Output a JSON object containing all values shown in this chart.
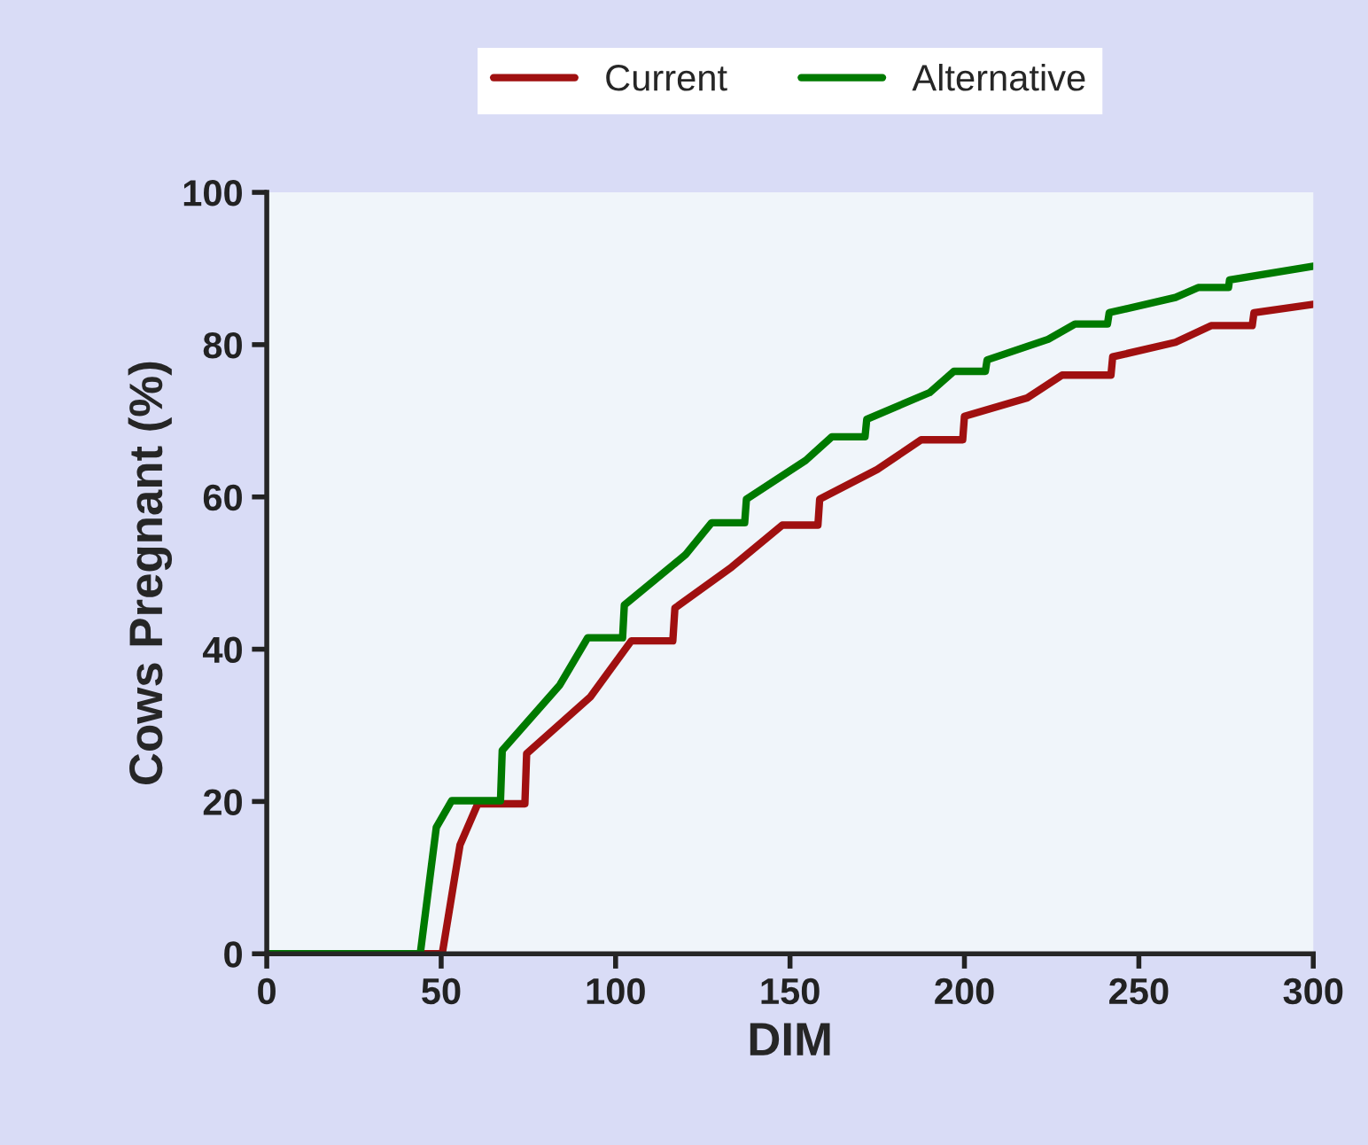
{
  "chart_data": {
    "type": "line",
    "xlabel": "DIM",
    "ylabel": "Cows Pregnant (%)",
    "xlim": [
      0,
      300
    ],
    "ylim": [
      0,
      100
    ],
    "xticks": [
      0,
      50,
      100,
      150,
      200,
      250,
      300
    ],
    "yticks": [
      0,
      20,
      40,
      60,
      80,
      100
    ],
    "grid": false,
    "legend": "top",
    "marker": "none",
    "line_style": "solid",
    "series": [
      {
        "name": "Current",
        "color": "#a01010",
        "x": [
          0,
          50.3,
          55.4,
          60.5,
          74,
          74.5,
          92.7,
          104.5,
          116.4,
          117,
          133.3,
          147.8,
          158,
          158.5,
          175,
          187.6,
          199.5,
          200,
          218,
          228,
          242,
          242.5,
          260.5,
          270.7,
          282.5,
          283,
          300
        ],
        "values": [
          0,
          0,
          14.3,
          19.7,
          19.7,
          26.3,
          33.7,
          41.1,
          41.1,
          45.4,
          50.8,
          56.3,
          56.3,
          59.7,
          63.6,
          67.5,
          67.5,
          70.6,
          73,
          76,
          76,
          78.4,
          80.3,
          82.5,
          82.5,
          84.2,
          85.3
        ]
      },
      {
        "name": "Alternative",
        "color": "#007a00",
        "x": [
          0,
          44,
          48.6,
          53,
          67,
          67.5,
          84,
          92,
          102,
          102.5,
          120,
          127.5,
          137,
          137.5,
          154.5,
          162,
          171.5,
          172,
          190,
          197,
          206,
          206.5,
          224,
          231.7,
          241,
          241.5,
          260.5,
          267,
          275.7,
          276,
          300
        ],
        "values": [
          0,
          0,
          16.6,
          20.1,
          20.1,
          26.7,
          35.3,
          41.5,
          41.5,
          45.8,
          52.4,
          56.6,
          56.6,
          59.7,
          64.8,
          67.9,
          67.9,
          70.2,
          73.7,
          76.5,
          76.5,
          78,
          80.7,
          82.7,
          82.7,
          84.2,
          86.2,
          87.5,
          87.5,
          88.5,
          90.3
        ]
      }
    ]
  }
}
